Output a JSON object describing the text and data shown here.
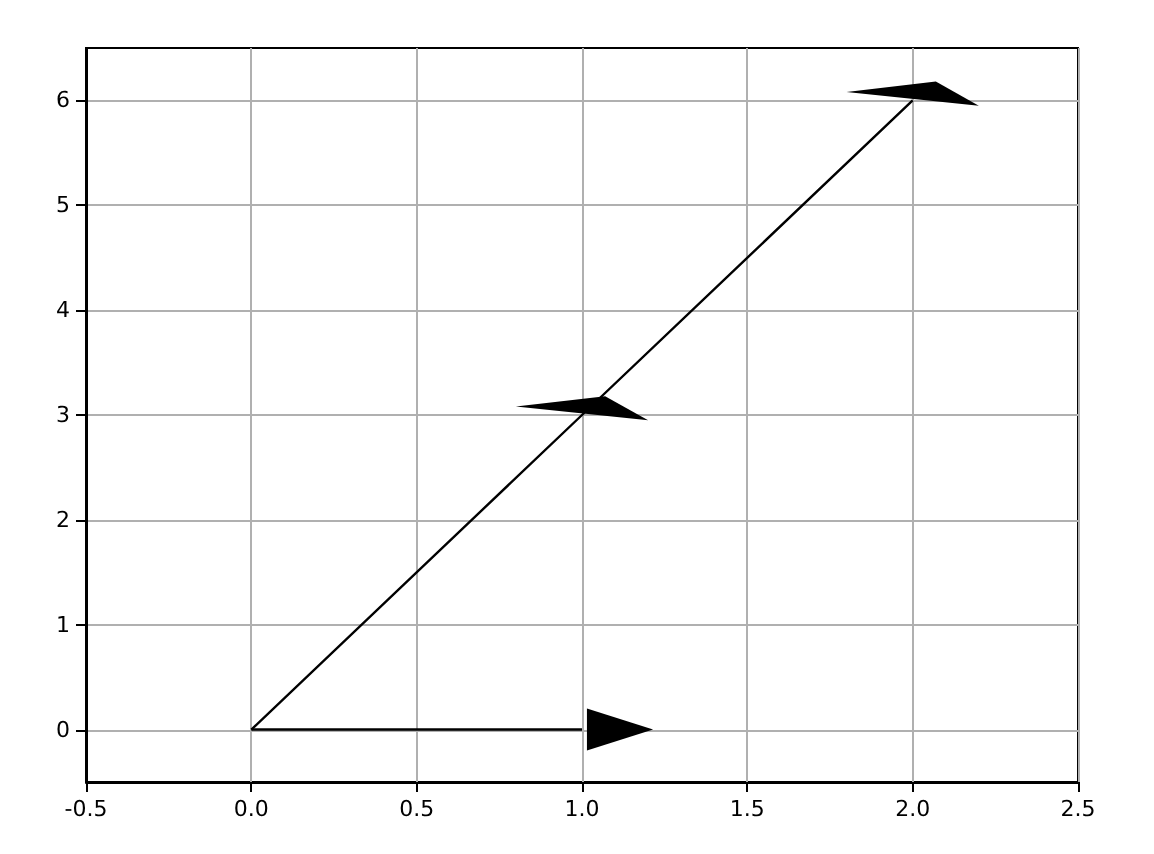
{
  "chart_data": {
    "type": "line",
    "series": [
      {
        "color": "#000000",
        "x": [
          0,
          1
        ],
        "values": [
          0,
          0
        ]
      },
      {
        "color": "#000000",
        "x": [
          0,
          1,
          2
        ],
        "values": [
          0,
          3,
          6
        ]
      }
    ],
    "xlim": [
      -0.5,
      2.5
    ],
    "xticks": [
      -0.5,
      {
        "value": 0,
        "label": "0.0"
      },
      0.5,
      {
        "value": 1,
        "label": "1.0"
      },
      1.5,
      {
        "value": 2,
        "label": "2.0"
      },
      2.5
    ],
    "ylim": [
      -0.5,
      6.5
    ],
    "yticks": [
      0,
      1,
      2,
      3,
      4,
      5,
      6
    ],
    "grid": true,
    "marker": "none",
    "line_style": "solid"
  }
}
